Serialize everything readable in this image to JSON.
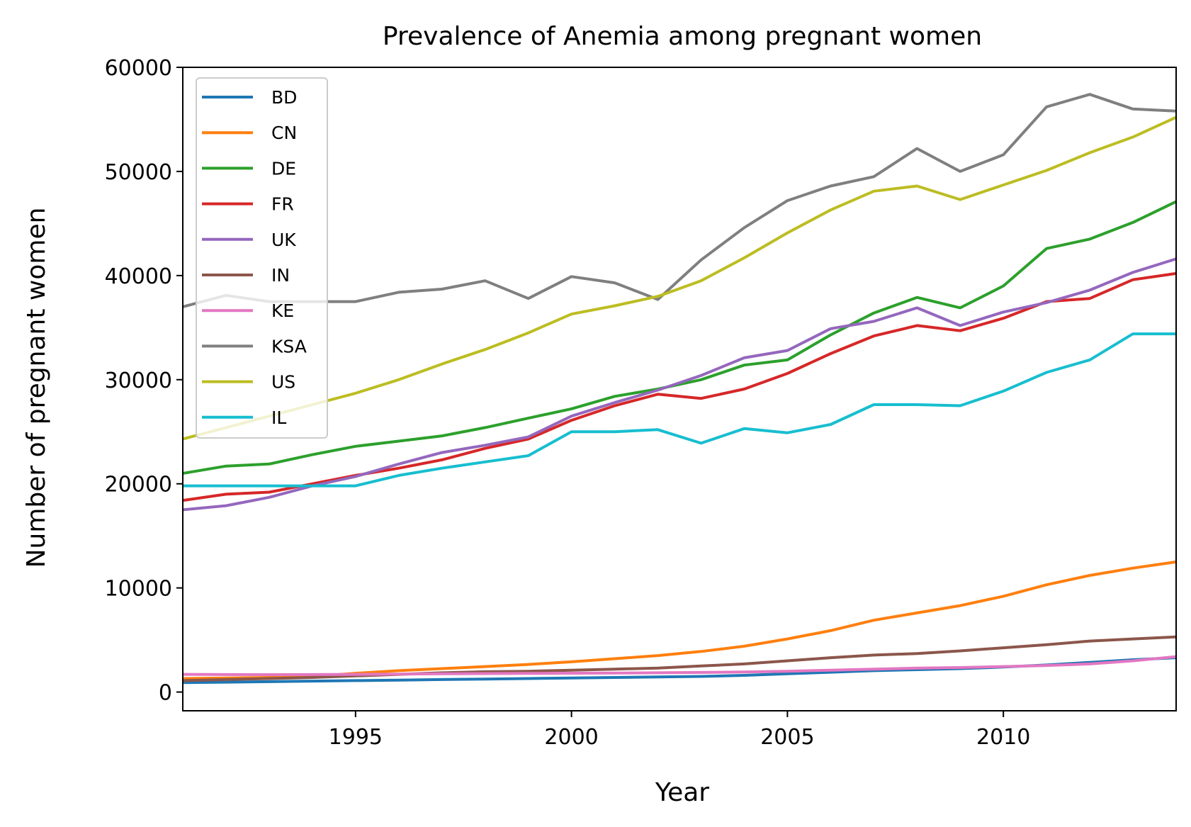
{
  "chart_data": {
    "type": "line",
    "title": "Prevalence of Anemia among pregnant women",
    "xlabel": "Year",
    "ylabel": "Number of pregnant women",
    "xlim": [
      1991,
      2014
    ],
    "ylim": [
      -1800,
      60000
    ],
    "xticks": [
      1995,
      2000,
      2005,
      2010
    ],
    "yticks": [
      0,
      10000,
      20000,
      30000,
      40000,
      50000,
      60000
    ],
    "grid": false,
    "legend_position": "upper-left",
    "x": [
      1991,
      1992,
      1993,
      1994,
      1995,
      1996,
      1997,
      1998,
      1999,
      2000,
      2001,
      2002,
      2003,
      2004,
      2005,
      2006,
      2007,
      2008,
      2009,
      2010,
      2011,
      2012,
      2013,
      2014
    ],
    "series": [
      {
        "name": "BD",
        "color": "#1f77b4",
        "values": [
          900,
          950,
          1000,
          1050,
          1100,
          1150,
          1200,
          1250,
          1300,
          1350,
          1400,
          1450,
          1500,
          1600,
          1750,
          1900,
          2050,
          2150,
          2250,
          2400,
          2600,
          2850,
          3100,
          3300
        ]
      },
      {
        "name": "CN",
        "color": "#ff7f0e",
        "values": [
          1300,
          1350,
          1400,
          1500,
          1800,
          2050,
          2250,
          2450,
          2650,
          2900,
          3200,
          3500,
          3900,
          4400,
          5100,
          5900,
          6900,
          7600,
          8300,
          9200,
          10300,
          11200,
          11900,
          12500
        ]
      },
      {
        "name": "DE",
        "color": "#2ca02c",
        "values": [
          21000,
          21700,
          21900,
          22800,
          23600,
          24100,
          24600,
          25400,
          26300,
          27200,
          28400,
          29100,
          30000,
          31400,
          31900,
          34300,
          36400,
          37900,
          36900,
          39000,
          42600,
          43500,
          45100,
          47100
        ]
      },
      {
        "name": "FR",
        "color": "#d62728",
        "values": [
          18400,
          19000,
          19200,
          20000,
          20800,
          21500,
          22300,
          23400,
          24300,
          26100,
          27500,
          28600,
          28200,
          29100,
          30600,
          32500,
          34200,
          35200,
          34700,
          35900,
          37500,
          37800,
          39600,
          40200
        ]
      },
      {
        "name": "UK",
        "color": "#9467bd",
        "values": [
          17500,
          17900,
          18700,
          19800,
          20700,
          21900,
          23000,
          23700,
          24500,
          26500,
          27800,
          29000,
          30400,
          32100,
          32800,
          34900,
          35600,
          36900,
          35200,
          36500,
          37400,
          38600,
          40300,
          41600
        ]
      },
      {
        "name": "IN",
        "color": "#8c564b",
        "values": [
          1100,
          1200,
          1300,
          1400,
          1550,
          1700,
          1850,
          1950,
          2000,
          2100,
          2200,
          2300,
          2500,
          2700,
          3000,
          3300,
          3550,
          3700,
          3950,
          4250,
          4550,
          4900,
          5100,
          5300
        ]
      },
      {
        "name": "KE",
        "color": "#e377c2",
        "values": [
          1700,
          1680,
          1670,
          1680,
          1700,
          1720,
          1750,
          1770,
          1790,
          1810,
          1830,
          1850,
          1880,
          1920,
          2000,
          2100,
          2200,
          2300,
          2350,
          2450,
          2550,
          2700,
          3000,
          3400
        ]
      },
      {
        "name": "KSA",
        "color": "#7f7f7f",
        "values": [
          37000,
          38100,
          37500,
          37500,
          37500,
          38400,
          38700,
          39500,
          37800,
          39900,
          39300,
          37700,
          41500,
          44600,
          47200,
          48600,
          49500,
          52200,
          50000,
          51600,
          56200,
          57400,
          56000,
          55800
        ]
      },
      {
        "name": "US",
        "color": "#bcbd22",
        "values": [
          24300,
          25400,
          26500,
          27600,
          28700,
          30000,
          31500,
          32900,
          34500,
          36300,
          37100,
          38000,
          39500,
          41700,
          44100,
          46300,
          48100,
          48600,
          47300,
          48700,
          50100,
          51800,
          53300,
          55200
        ]
      },
      {
        "name": "IL",
        "color": "#17becf",
        "values": [
          19800,
          19800,
          19800,
          19800,
          19800,
          20800,
          21500,
          22100,
          22700,
          25000,
          25000,
          25200,
          23900,
          25300,
          24900,
          25700,
          27600,
          27600,
          27500,
          28900,
          30700,
          31900,
          34400,
          34400
        ]
      }
    ]
  }
}
